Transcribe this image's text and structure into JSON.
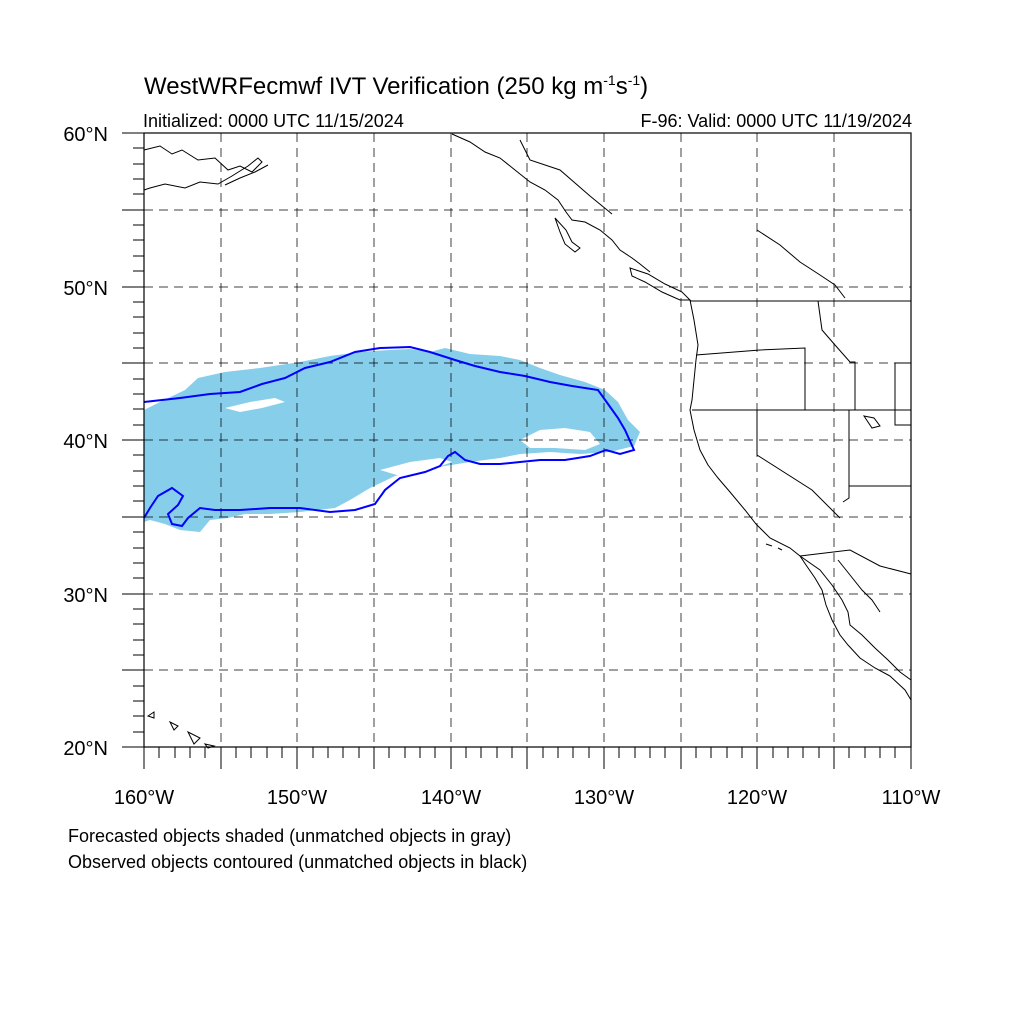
{
  "header": {
    "title_main": "WestWRFecmwf IVT Verification (250 kg m",
    "title_sup1": "-1",
    "title_mid": "s",
    "title_sup2": "-1",
    "title_end": ")",
    "initialized": "Initialized: 0000 UTC 11/15/2024",
    "valid": "F-96: Valid: 0000 UTC 11/19/2024"
  },
  "map": {
    "lon_range": [
      -160,
      -110
    ],
    "lat_range": [
      20,
      60
    ],
    "lat_labels": [
      "60°N",
      "50°N",
      "40°N",
      "30°N",
      "20°N"
    ],
    "lon_labels": [
      "160°W",
      "150°W",
      "140°W",
      "130°W",
      "120°W",
      "110°W"
    ],
    "forecast_fill_color": "#87ceeb",
    "observed_contour_color": "#0000ff",
    "grid": "dashed, every 5°"
  },
  "notes": {
    "line1": "Forecasted objects shaded (unmatched objects in gray)",
    "line2": "Observed objects contoured (unmatched objects in black)"
  }
}
